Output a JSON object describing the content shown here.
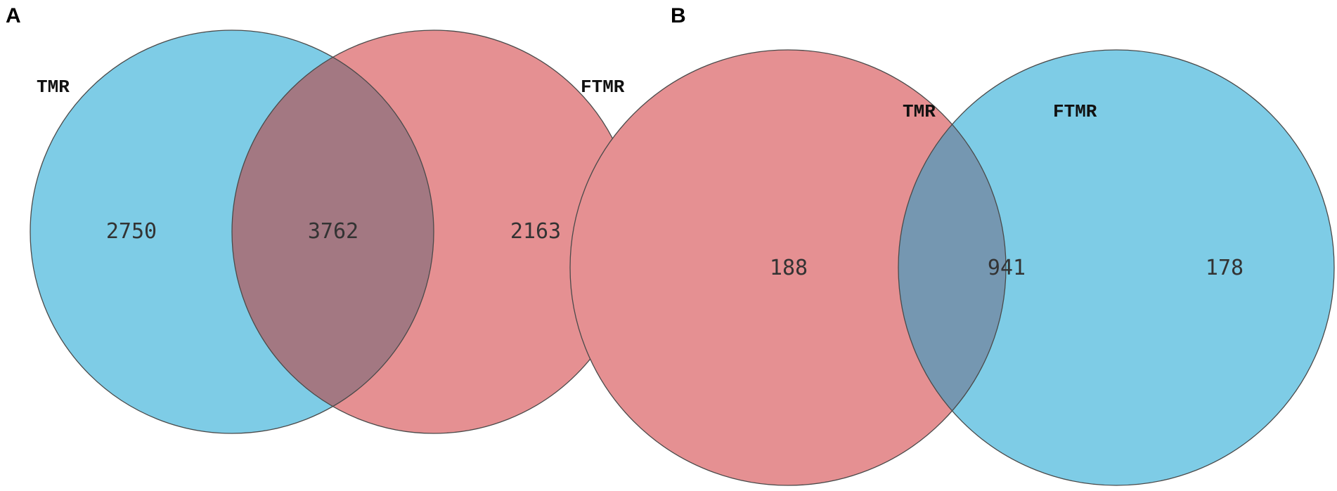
{
  "colors": {
    "blue": "#7ecce6",
    "red": "#e59092",
    "overlap_a": "#a37882",
    "overlap_b": "#7597b1",
    "edge": "#4a4a4a"
  },
  "panels": [
    {
      "letter": "A",
      "sets": [
        {
          "label": "TMR",
          "color": "blue",
          "count": "2750"
        },
        {
          "label": "FTMR",
          "color": "red",
          "count": "2163"
        }
      ],
      "intersection": "3762"
    },
    {
      "letter": "B",
      "sets": [
        {
          "label": "TMR",
          "color": "red",
          "count": "188"
        },
        {
          "label": "FTMR",
          "color": "blue",
          "count": "178"
        }
      ],
      "intersection": "941"
    }
  ]
}
